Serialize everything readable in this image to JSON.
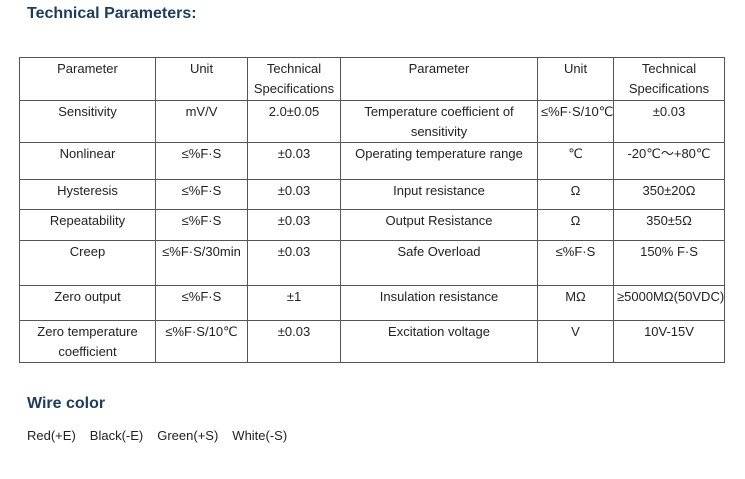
{
  "header": {
    "title": "Technical Parameters:"
  },
  "table": {
    "columns": [
      "Parameter",
      "Unit",
      "Technical Specifications",
      "Parameter",
      "Unit",
      "Technical Specifications"
    ],
    "rows": [
      [
        "Sensitivity",
        "mV/V",
        "2.0±0.05",
        "Temperature coefficient of sensitivity",
        "≤%F·S/10℃",
        "±0.03"
      ],
      [
        "Nonlinear",
        "≤%F·S",
        "±0.03",
        "Operating temperature range",
        "℃",
        "-20℃～+80℃"
      ],
      [
        "Hysteresis",
        "≤%F·S",
        "±0.03",
        "Input resistance",
        "Ω",
        "350±20Ω"
      ],
      [
        "Repeatability",
        "≤%F·S",
        "±0.03",
        "Output Resistance",
        "Ω",
        "350±5Ω"
      ],
      [
        "Creep",
        "≤%F·S/30min",
        "±0.03",
        "Safe Overload",
        "≤%F·S",
        "150% F·S"
      ],
      [
        "Zero output",
        "≤%F·S",
        "±1",
        "Insulation resistance",
        "MΩ",
        "≥5000MΩ(50VDC)"
      ],
      [
        "Zero temperature coefficient",
        "≤%F·S/10℃",
        "±0.03",
        "Excitation voltage",
        "V",
        "10V-15V"
      ]
    ]
  },
  "wire": {
    "title": "Wire color",
    "items": [
      "Red(+E)",
      "Black(-E)",
      "Green(+S)",
      "White(-S)"
    ]
  }
}
